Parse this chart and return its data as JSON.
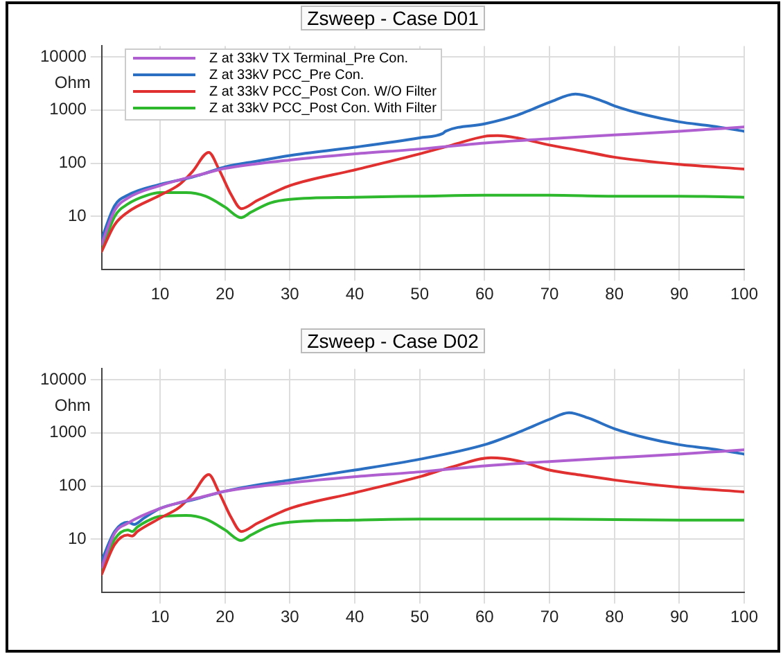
{
  "chart_data": [
    {
      "type": "line",
      "title": "Zsweep - Case D01",
      "ylabel": "Ohm",
      "log": "y",
      "grid": true,
      "legend": "top left",
      "marker": "none",
      "line_style": "solid",
      "xlim": [
        1,
        100
      ],
      "xticks": [
        10,
        20,
        30,
        40,
        50,
        60,
        70,
        80,
        90,
        100
      ],
      "ylim": [
        1,
        16000
      ],
      "yticks": [
        10,
        100,
        1000,
        10000
      ],
      "series": [
        {
          "name": "Z at 33kV TX Terminal_Pre Con.",
          "color": "#b05fd0",
          "x": [
            1,
            3,
            5,
            10,
            17,
            20,
            30,
            40,
            50,
            60,
            70,
            80,
            90,
            100
          ],
          "values": [
            3,
            13,
            22,
            38,
            65,
            80,
            115,
            150,
            185,
            240,
            290,
            340,
            400,
            480
          ]
        },
        {
          "name": "Z at 33kV PCC_Pre Con.",
          "color": "#2a6fc2",
          "x": [
            1,
            3,
            5,
            10,
            15,
            17,
            20,
            25,
            30,
            40,
            50,
            53.5,
            54,
            60,
            65,
            70,
            74,
            78,
            80,
            85,
            90,
            95,
            100
          ],
          "values": [
            3.8,
            16,
            25,
            40,
            55,
            65,
            85,
            110,
            140,
            200,
            300,
            360,
            400,
            550,
            800,
            1400,
            2000,
            1500,
            1200,
            800,
            600,
            500,
            400
          ]
        },
        {
          "name": "Z at 33kV PCC_Post Con. W/O Filter",
          "color": "#e03030",
          "x": [
            1,
            3,
            5,
            10,
            13,
            15,
            17.5,
            19,
            21,
            22.5,
            25,
            30,
            40,
            50,
            55,
            60,
            62,
            65,
            70,
            75,
            80,
            90,
            100
          ],
          "values": [
            2.2,
            7,
            12,
            25,
            40,
            70,
            160,
            80,
            25,
            14,
            20,
            38,
            75,
            150,
            220,
            320,
            330,
            300,
            220,
            170,
            130,
            95,
            78
          ]
        },
        {
          "name": "Z at 33kV PCC_Post Con. With Filter",
          "color": "#2db82d",
          "x": [
            1,
            3,
            5,
            8,
            10,
            14,
            17,
            20,
            22.5,
            24,
            27,
            30,
            40,
            50,
            60,
            70,
            80,
            90,
            100
          ],
          "values": [
            2.3,
            10,
            17,
            25,
            28,
            28,
            24,
            15,
            9.5,
            12,
            18,
            21,
            23,
            24,
            25,
            25,
            24,
            24,
            23
          ]
        }
      ]
    },
    {
      "type": "line",
      "title": "Zsweep - Case D02",
      "ylabel": "Ohm",
      "log": "y",
      "grid": true,
      "marker": "none",
      "line_style": "solid",
      "xlim": [
        1,
        100
      ],
      "xticks": [
        10,
        20,
        30,
        40,
        50,
        60,
        70,
        80,
        90,
        100
      ],
      "ylim": [
        1,
        16000
      ],
      "yticks": [
        10,
        100,
        1000,
        10000
      ],
      "series": [
        {
          "color": "#b05fd0",
          "x": [
            1,
            3,
            5,
            10,
            17,
            20,
            30,
            40,
            50,
            60,
            70,
            80,
            90,
            100
          ],
          "values": [
            3,
            13,
            20,
            38,
            65,
            80,
            115,
            150,
            185,
            240,
            290,
            340,
            400,
            480
          ]
        },
        {
          "color": "#2a6fc2",
          "x": [
            1,
            3,
            5,
            6,
            7.5,
            10,
            15,
            20,
            25,
            30,
            40,
            50,
            60,
            65,
            70,
            73,
            76,
            80,
            85,
            90,
            95,
            100
          ],
          "values": [
            4,
            14,
            21,
            19,
            25,
            38,
            55,
            80,
            105,
            130,
            200,
            320,
            600,
            1000,
            1800,
            2400,
            1900,
            1200,
            800,
            600,
            500,
            400
          ]
        },
        {
          "color": "#e03030",
          "x": [
            1,
            3,
            5,
            5.7,
            6.5,
            10,
            13,
            15,
            17.5,
            19,
            21,
            22.5,
            25,
            30,
            40,
            50,
            55,
            61,
            65,
            70,
            75,
            80,
            90,
            100
          ],
          "values": [
            2.2,
            8,
            12,
            11.5,
            14,
            25,
            40,
            70,
            165,
            80,
            25,
            14,
            20,
            38,
            75,
            150,
            230,
            340,
            300,
            200,
            160,
            130,
            95,
            78
          ]
        },
        {
          "color": "#2db82d",
          "x": [
            1,
            3,
            5,
            5.7,
            6.5,
            8,
            10,
            14,
            17,
            20,
            22.5,
            24,
            27,
            30,
            40,
            50,
            60,
            70,
            80,
            90,
            100
          ],
          "values": [
            2.5,
            10,
            15,
            14,
            17,
            22,
            27,
            28,
            24,
            15,
            9.5,
            12,
            18,
            21,
            23,
            24,
            24,
            24,
            23.5,
            23,
            23
          ]
        }
      ]
    }
  ]
}
